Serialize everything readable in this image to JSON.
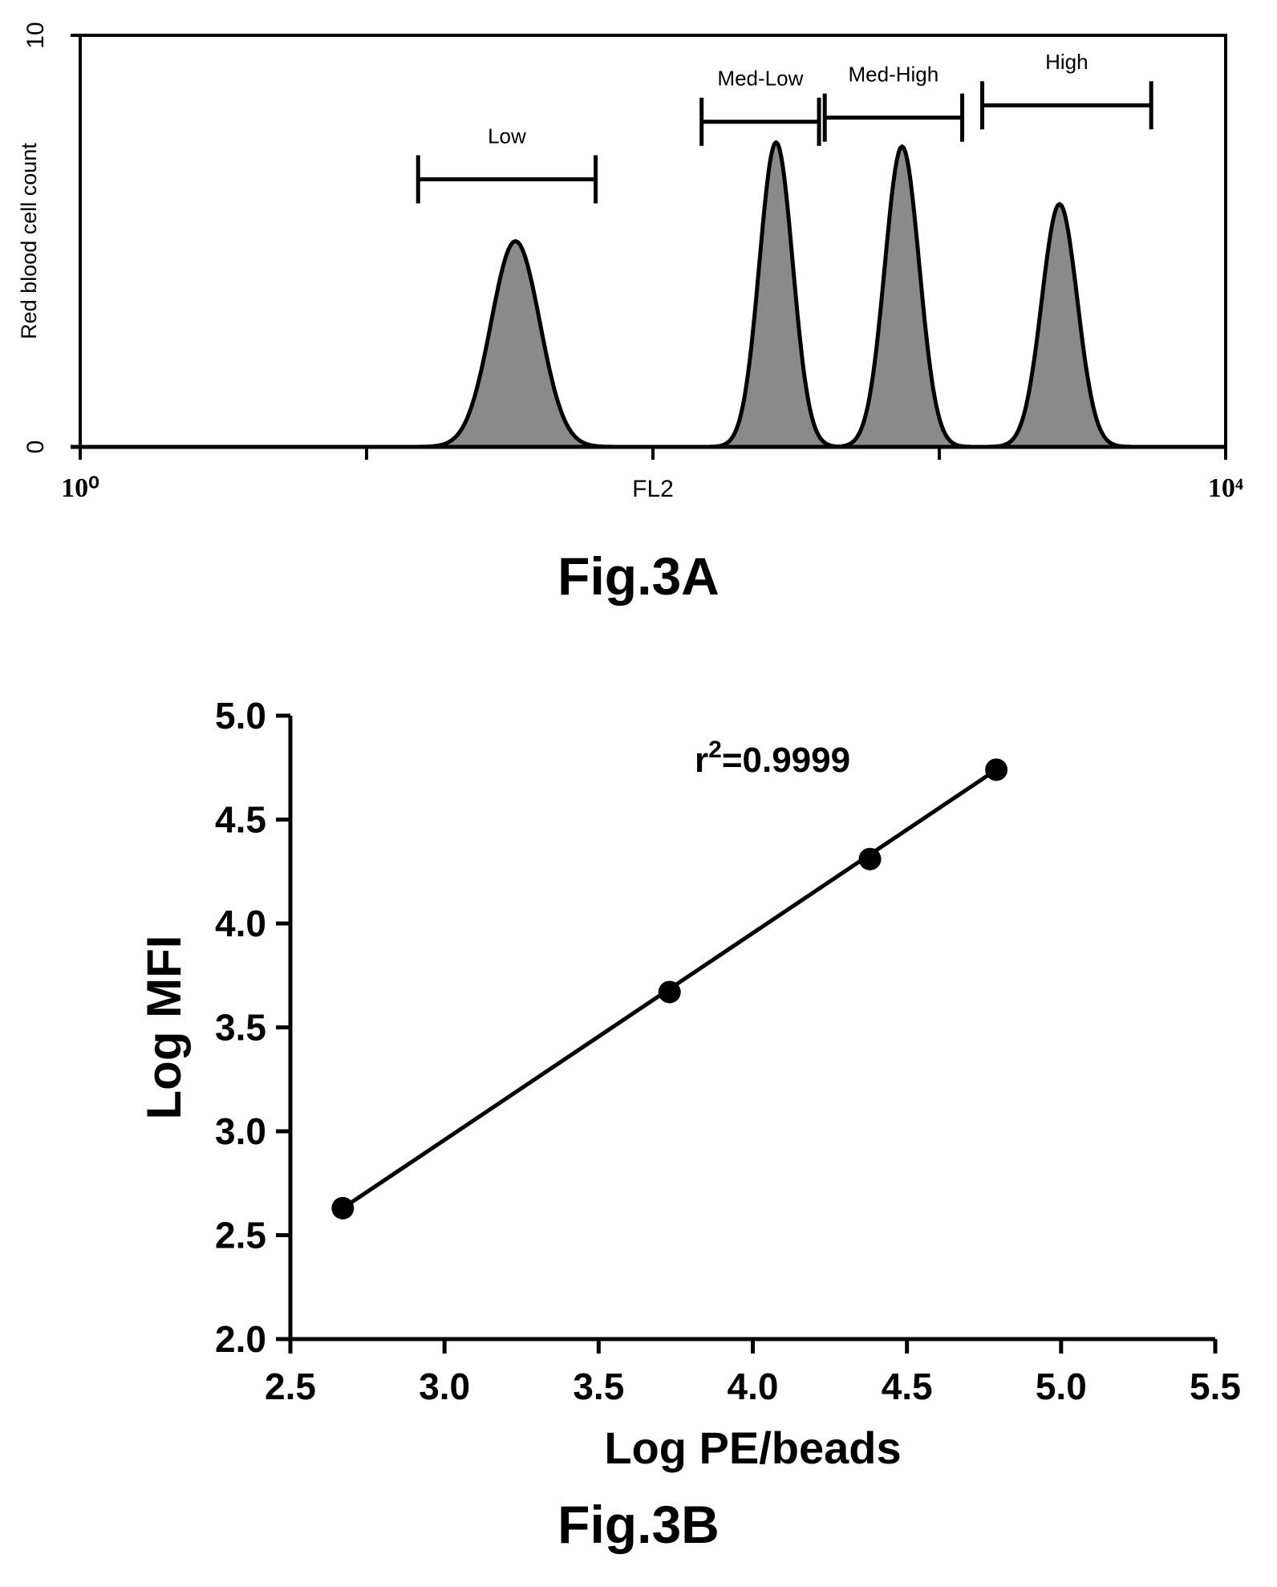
{
  "captions": {
    "fig_a": "Fig.3A",
    "fig_b": "Fig.3B"
  },
  "chart_data": [
    {
      "type": "area",
      "title": "",
      "xlabel": "FL2",
      "ylabel": "Red blood cell count",
      "x_scale": "log",
      "xlim": [
        1,
        10000
      ],
      "ylim": [
        0,
        10
      ],
      "x_tick_labels": {
        "min": "10⁰",
        "max": "10⁴"
      },
      "y_tick_labels": [
        "0",
        "10"
      ],
      "grid": false,
      "fill_color": "#8a8a8a",
      "line_color": "#000000",
      "series": [
        {
          "name": "Low",
          "peak_log10_fl2": 1.52,
          "peak_count": 5.0,
          "spread_log10": 0.085
        },
        {
          "name": "Med-Low",
          "peak_log10_fl2": 2.43,
          "peak_count": 7.4,
          "spread_log10": 0.058
        },
        {
          "name": "Med-High",
          "peak_log10_fl2": 2.87,
          "peak_count": 7.3,
          "spread_log10": 0.06
        },
        {
          "name": "High",
          "peak_log10_fl2": 3.42,
          "peak_count": 5.9,
          "spread_log10": 0.062
        }
      ],
      "gates": [
        {
          "label": "Low",
          "from_log10": 1.18,
          "to_log10": 1.8,
          "level": 6.5
        },
        {
          "label": "Med-Low",
          "from_log10": 2.17,
          "to_log10": 2.58,
          "level": 7.9
        },
        {
          "label": "Med-High",
          "from_log10": 2.6,
          "to_log10": 3.08,
          "level": 8.0
        },
        {
          "label": "High",
          "from_log10": 3.15,
          "to_log10": 3.74,
          "level": 8.3
        }
      ]
    },
    {
      "type": "scatter",
      "title": "",
      "xlabel": "Log PE/beads",
      "ylabel": "Log MFI",
      "xlim": [
        2.5,
        5.5
      ],
      "ylim": [
        2.0,
        5.0
      ],
      "x_ticks": [
        "2.5",
        "3.0",
        "3.5",
        "4.0",
        "4.5",
        "5.0",
        "5.5"
      ],
      "y_ticks": [
        "2.0",
        "2.5",
        "3.0",
        "3.5",
        "4.0",
        "4.5",
        "5.0"
      ],
      "grid": false,
      "annotation": {
        "base": "r",
        "superscript": "2",
        "rest": "=0.9999"
      },
      "points": [
        {
          "x": 2.67,
          "y": 2.63
        },
        {
          "x": 3.73,
          "y": 3.67
        },
        {
          "x": 4.38,
          "y": 4.31
        },
        {
          "x": 4.79,
          "y": 4.74
        }
      ],
      "fit_line": {
        "x": [
          2.67,
          4.79
        ],
        "y": [
          2.63,
          4.74
        ]
      },
      "marker_color": "#000000"
    }
  ]
}
